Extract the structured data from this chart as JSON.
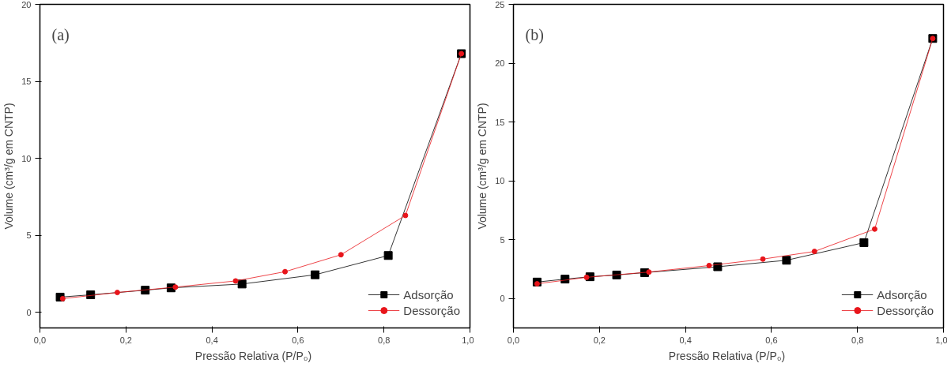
{
  "chart_data": [
    {
      "type": "line",
      "annotations": [
        "(a)"
      ],
      "xlabel": "Pressão Relativa  (P/P₀)",
      "ylabel": "Volume (cm³/g em CNTP)",
      "xlim": [
        0,
        1
      ],
      "ylim": [
        -1,
        20
      ],
      "xticks": [
        {
          "value": 0,
          "label": "0,0"
        },
        {
          "value": 0.2,
          "label": "0,2"
        },
        {
          "value": 0.4,
          "label": "0,4"
        },
        {
          "value": 0.6,
          "label": "0,6"
        },
        {
          "value": 0.8,
          "label": "0,8"
        },
        {
          "value": 1,
          "label": "1,0"
        }
      ],
      "yticks": [
        0,
        5,
        10,
        15,
        20
      ],
      "grid": false,
      "legend": "bottom right",
      "series": [
        {
          "name": "Adsorção",
          "color": "#000000",
          "marker": "square",
          "x": [
            0.047,
            0.118,
            0.245,
            0.305,
            0.47,
            0.64,
            0.81,
            0.98
          ],
          "values": [
            1.0,
            1.15,
            1.45,
            1.6,
            1.85,
            2.45,
            3.7,
            16.8
          ]
        },
        {
          "name": "Dessorção",
          "color": "#e8151b",
          "marker": "circle",
          "x": [
            0.98,
            0.85,
            0.7,
            0.57,
            0.455,
            0.315,
            0.18,
            0.053
          ],
          "values": [
            16.8,
            6.3,
            3.75,
            2.65,
            2.05,
            1.65,
            1.3,
            0.9
          ]
        }
      ]
    },
    {
      "type": "line",
      "annotations": [
        "(b)"
      ],
      "xlabel": "Pressão Relativa  (P/P₀)",
      "ylabel": "Volume (cm³/g em CNTP)",
      "xlim": [
        0,
        1
      ],
      "ylim": [
        -2.5,
        25
      ],
      "xticks": [
        {
          "value": 0,
          "label": "0,0"
        },
        {
          "value": 0.2,
          "label": "0,2"
        },
        {
          "value": 0.4,
          "label": "0,4"
        },
        {
          "value": 0.6,
          "label": "0,6"
        },
        {
          "value": 0.8,
          "label": "0,8"
        },
        {
          "value": 1,
          "label": "1,0"
        }
      ],
      "yticks": [
        0,
        5,
        10,
        15,
        20,
        25
      ],
      "grid": false,
      "legend": "bottom right",
      "series": [
        {
          "name": "Adsorção",
          "color": "#000000",
          "marker": "square",
          "x": [
            0.055,
            0.12,
            0.178,
            0.24,
            0.305,
            0.475,
            0.635,
            0.815,
            0.975
          ],
          "values": [
            1.4,
            1.65,
            1.85,
            2.0,
            2.2,
            2.7,
            3.25,
            4.75,
            22.1
          ]
        },
        {
          "name": "Dessorção",
          "color": "#e8151b",
          "marker": "circle",
          "x": [
            0.975,
            0.84,
            0.7,
            0.58,
            0.455,
            0.315,
            0.17,
            0.055
          ],
          "values": [
            22.1,
            5.9,
            4.0,
            3.35,
            2.8,
            2.25,
            1.8,
            1.25
          ]
        }
      ]
    }
  ]
}
